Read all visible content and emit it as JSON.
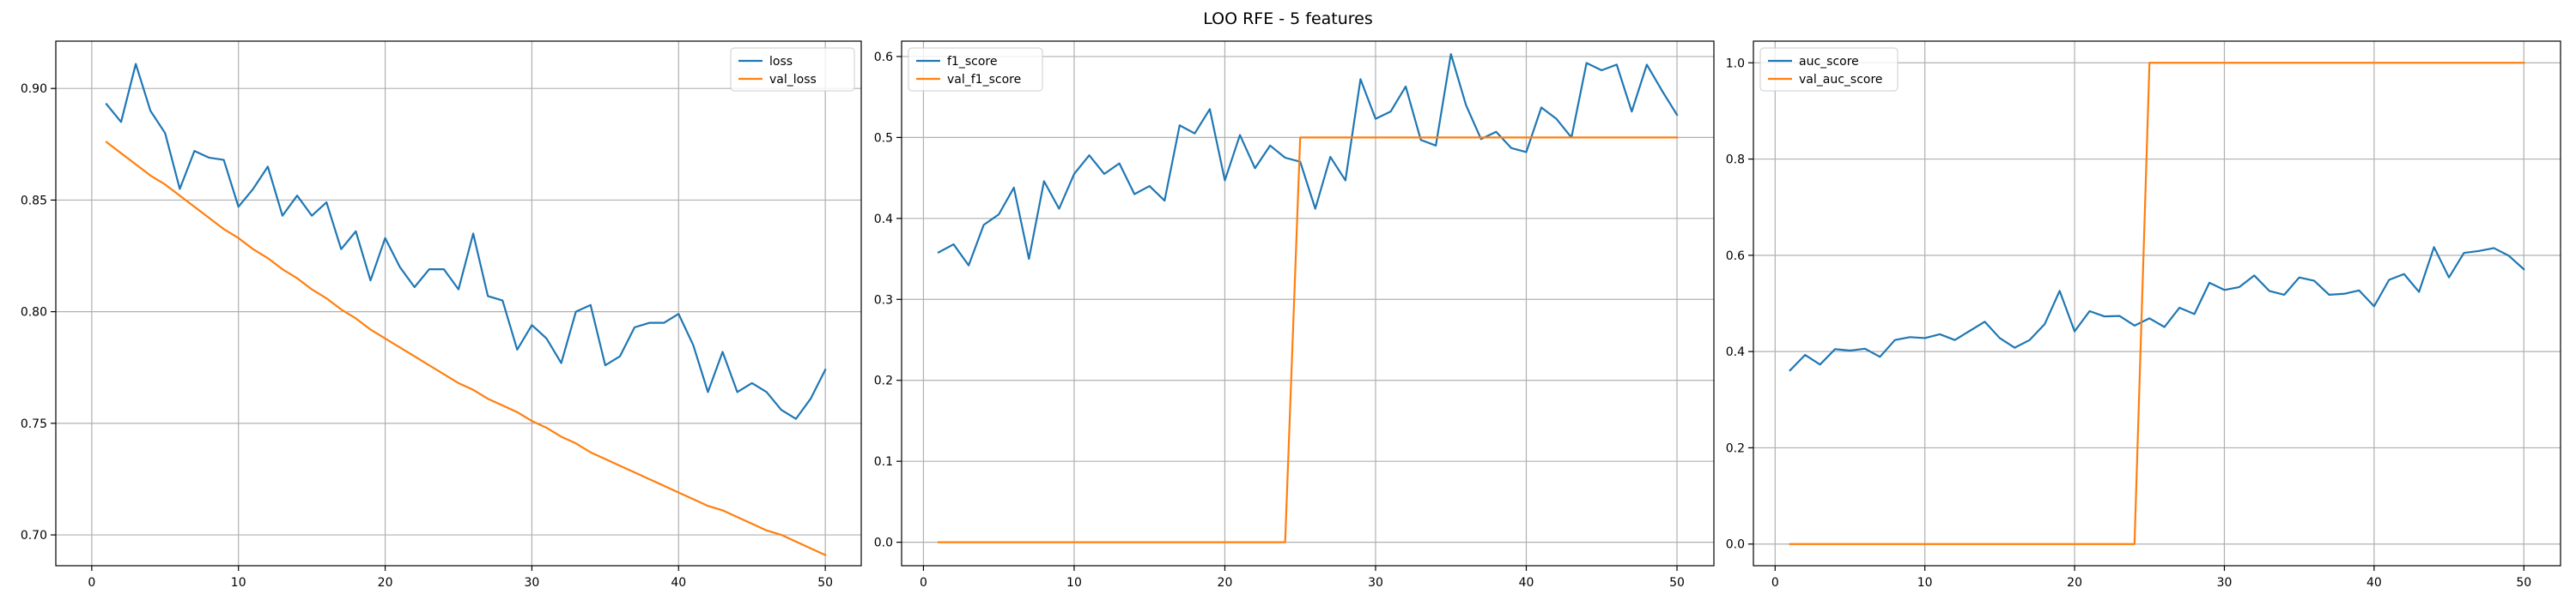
{
  "figure": {
    "title": "LOO RFE - 5 features"
  },
  "colors": {
    "series_0": "#1f77b4",
    "series_1": "#ff7f0e"
  },
  "chart_data": [
    {
      "type": "line",
      "title": "",
      "xlabel": "",
      "ylabel": "",
      "xlim": [
        -2.45,
        52.45
      ],
      "ylim": [
        0.6862,
        0.9212
      ],
      "xticks": [
        0,
        10,
        20,
        30,
        40,
        50
      ],
      "yticks": [
        0.7,
        0.75,
        0.8,
        0.85,
        0.9
      ],
      "ytick_labels": [
        "0.70",
        "0.75",
        "0.80",
        "0.85",
        "0.90"
      ],
      "grid": true,
      "legend_position": "top-right",
      "x": [
        1,
        2,
        3,
        4,
        5,
        6,
        7,
        8,
        9,
        10,
        11,
        12,
        13,
        14,
        15,
        16,
        17,
        18,
        19,
        20,
        21,
        22,
        23,
        24,
        25,
        26,
        27,
        28,
        29,
        30,
        31,
        32,
        33,
        34,
        35,
        36,
        37,
        38,
        39,
        40,
        41,
        42,
        43,
        44,
        45,
        46,
        47,
        48,
        49,
        50
      ],
      "series": [
        {
          "name": "loss",
          "color": "#1f77b4",
          "values": [
            0.893,
            0.885,
            0.911,
            0.89,
            0.88,
            0.855,
            0.872,
            0.869,
            0.868,
            0.847,
            0.855,
            0.865,
            0.843,
            0.852,
            0.843,
            0.849,
            0.828,
            0.836,
            0.814,
            0.833,
            0.82,
            0.811,
            0.819,
            0.819,
            0.81,
            0.835,
            0.807,
            0.805,
            0.783,
            0.794,
            0.788,
            0.777,
            0.8,
            0.803,
            0.776,
            0.78,
            0.793,
            0.795,
            0.795,
            0.799,
            0.785,
            0.764,
            0.782,
            0.764,
            0.768,
            0.764,
            0.756,
            0.752,
            0.761,
            0.774
          ]
        },
        {
          "name": "val_loss",
          "color": "#ff7f0e",
          "values": [
            0.876,
            0.871,
            0.866,
            0.861,
            0.857,
            0.852,
            0.847,
            0.842,
            0.837,
            0.833,
            0.828,
            0.824,
            0.819,
            0.815,
            0.81,
            0.806,
            0.801,
            0.797,
            0.792,
            0.788,
            0.784,
            0.78,
            0.776,
            0.772,
            0.768,
            0.765,
            0.761,
            0.758,
            0.755,
            0.751,
            0.748,
            0.744,
            0.741,
            0.737,
            0.734,
            0.731,
            0.728,
            0.725,
            0.722,
            0.719,
            0.716,
            0.713,
            0.711,
            0.708,
            0.705,
            0.702,
            0.7,
            0.697,
            0.694,
            0.691
          ]
        }
      ]
    },
    {
      "type": "line",
      "title": "",
      "xlabel": "",
      "ylabel": "",
      "xlim": [
        -1.45,
        52.45
      ],
      "ylim": [
        -0.029,
        0.619
      ],
      "xticks": [
        0,
        10,
        20,
        30,
        40,
        50
      ],
      "yticks": [
        0.0,
        0.1,
        0.2,
        0.3,
        0.4,
        0.5,
        0.6
      ],
      "ytick_labels": [
        "0.0",
        "0.1",
        "0.2",
        "0.3",
        "0.4",
        "0.5",
        "0.6"
      ],
      "grid": true,
      "legend_position": "top-left",
      "x": [
        1,
        2,
        3,
        4,
        5,
        6,
        7,
        8,
        9,
        10,
        11,
        12,
        13,
        14,
        15,
        16,
        17,
        18,
        19,
        20,
        21,
        22,
        23,
        24,
        25,
        26,
        27,
        28,
        29,
        30,
        31,
        32,
        33,
        34,
        35,
        36,
        37,
        38,
        39,
        40,
        41,
        42,
        43,
        44,
        45,
        46,
        47,
        48,
        49,
        50
      ],
      "series": [
        {
          "name": "f1_score",
          "color": "#1f77b4",
          "values": [
            0.358,
            0.368,
            0.342,
            0.392,
            0.405,
            0.438,
            0.35,
            0.446,
            0.412,
            0.455,
            0.478,
            0.455,
            0.468,
            0.43,
            0.44,
            0.422,
            0.515,
            0.505,
            0.535,
            0.447,
            0.503,
            0.462,
            0.49,
            0.475,
            0.47,
            0.412,
            0.476,
            0.447,
            0.572,
            0.523,
            0.532,
            0.563,
            0.497,
            0.49,
            0.603,
            0.54,
            0.498,
            0.507,
            0.487,
            0.482,
            0.537,
            0.523,
            0.5,
            0.592,
            0.583,
            0.59,
            0.532,
            0.59,
            0.558,
            0.528
          ]
        },
        {
          "name": "val_f1_score",
          "color": "#ff7f0e",
          "values": [
            0.0,
            0.0,
            0.0,
            0.0,
            0.0,
            0.0,
            0.0,
            0.0,
            0.0,
            0.0,
            0.0,
            0.0,
            0.0,
            0.0,
            0.0,
            0.0,
            0.0,
            0.0,
            0.0,
            0.0,
            0.0,
            0.0,
            0.0,
            0.0,
            0.5,
            0.5,
            0.5,
            0.5,
            0.5,
            0.5,
            0.5,
            0.5,
            0.5,
            0.5,
            0.5,
            0.5,
            0.5,
            0.5,
            0.5,
            0.5,
            0.5,
            0.5,
            0.5,
            0.5,
            0.5,
            0.5,
            0.5,
            0.5,
            0.5,
            0.5
          ]
        }
      ]
    },
    {
      "type": "line",
      "title": "",
      "xlabel": "",
      "ylabel": "",
      "xlim": [
        -1.45,
        52.45
      ],
      "ylim": [
        -0.045,
        1.045
      ],
      "xticks": [
        0,
        10,
        20,
        30,
        40,
        50
      ],
      "yticks": [
        0.0,
        0.2,
        0.4,
        0.6,
        0.8,
        1.0
      ],
      "ytick_labels": [
        "0.0",
        "0.2",
        "0.4",
        "0.6",
        "0.8",
        "1.0"
      ],
      "grid": true,
      "legend_position": "top-left",
      "x": [
        1,
        2,
        3,
        4,
        5,
        6,
        7,
        8,
        9,
        10,
        11,
        12,
        13,
        14,
        15,
        16,
        17,
        18,
        19,
        20,
        21,
        22,
        23,
        24,
        25,
        26,
        27,
        28,
        29,
        30,
        31,
        32,
        33,
        34,
        35,
        36,
        37,
        38,
        39,
        40,
        41,
        42,
        43,
        44,
        45,
        46,
        47,
        48,
        49,
        50
      ],
      "series": [
        {
          "name": "auc_score",
          "color": "#1f77b4",
          "values": [
            0.361,
            0.393,
            0.373,
            0.405,
            0.402,
            0.406,
            0.389,
            0.424,
            0.43,
            0.428,
            0.436,
            0.424,
            0.443,
            0.462,
            0.428,
            0.408,
            0.424,
            0.457,
            0.526,
            0.442,
            0.484,
            0.473,
            0.474,
            0.454,
            0.469,
            0.451,
            0.491,
            0.478,
            0.543,
            0.528,
            0.534,
            0.558,
            0.526,
            0.518,
            0.554,
            0.547,
            0.518,
            0.52,
            0.527,
            0.494,
            0.549,
            0.561,
            0.524,
            0.617,
            0.554,
            0.605,
            0.609,
            0.615,
            0.599,
            0.571
          ]
        },
        {
          "name": "val_auc_score",
          "color": "#ff7f0e",
          "values": [
            0.0,
            0.0,
            0.0,
            0.0,
            0.0,
            0.0,
            0.0,
            0.0,
            0.0,
            0.0,
            0.0,
            0.0,
            0.0,
            0.0,
            0.0,
            0.0,
            0.0,
            0.0,
            0.0,
            0.0,
            0.0,
            0.0,
            0.0,
            0.0,
            1.0,
            1.0,
            1.0,
            1.0,
            1.0,
            1.0,
            1.0,
            1.0,
            1.0,
            1.0,
            1.0,
            1.0,
            1.0,
            1.0,
            1.0,
            1.0,
            1.0,
            1.0,
            1.0,
            1.0,
            1.0,
            1.0,
            1.0,
            1.0,
            1.0,
            1.0
          ]
        }
      ]
    }
  ]
}
